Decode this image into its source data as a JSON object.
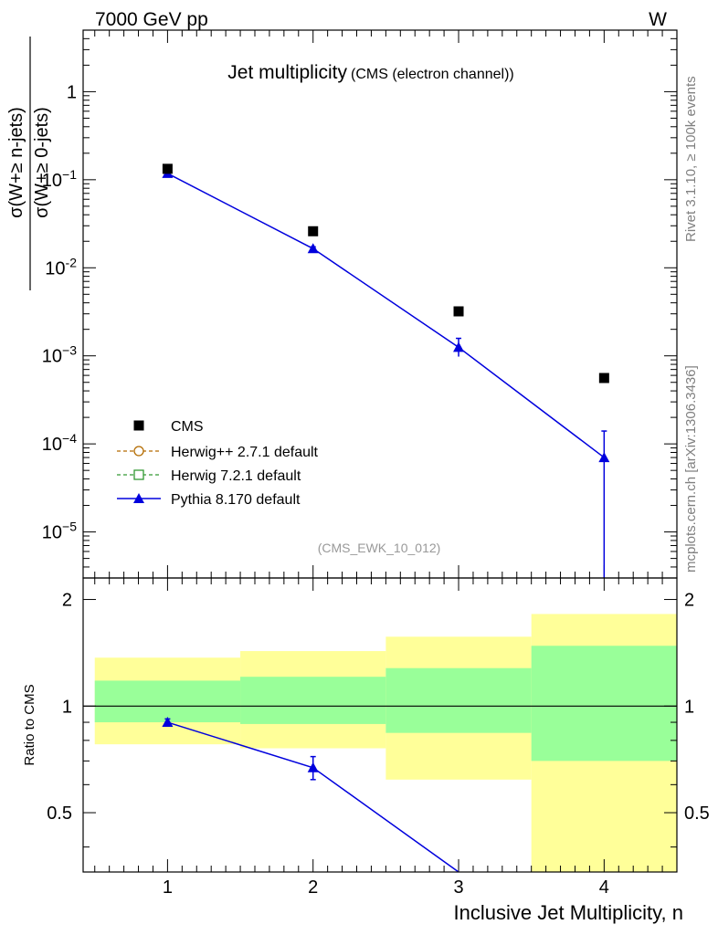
{
  "header": {
    "energy_label": "7000 GeV pp",
    "process_label": "W"
  },
  "side": {
    "rivet_label": "Rivet 3.1.10, ≥ 100k events",
    "source_label": "mcplots.cern.ch [arXiv:1306.3436]"
  },
  "chart_data": [
    {
      "type": "scatter",
      "title": "Jet multiplicity",
      "subtitle": "(CMS (electron channel))",
      "analysis_tag": "(CMS_EWK_10_012)",
      "ylabel_num": "σ(W+≥ n-jets)",
      "ylabel_den": "σ(W+≥ 0-jets)",
      "xlim": [
        0.42,
        4.5
      ],
      "ylim": [
        3e-06,
        5
      ],
      "yscale": "log",
      "y_tick_labels": [
        {
          "value": 1,
          "base": "1",
          "exp": ""
        },
        {
          "value": 0.1,
          "base": "10",
          "exp": "−1"
        },
        {
          "value": 0.01,
          "base": "10",
          "exp": "-2"
        },
        {
          "value": 0.001,
          "base": "10",
          "exp": "−3"
        },
        {
          "value": 0.0001,
          "base": "10",
          "exp": "−4"
        },
        {
          "value": 1e-05,
          "base": "10",
          "exp": "−5"
        }
      ],
      "legend_position": "bottom-left",
      "series": [
        {
          "name": "CMS",
          "marker": "square",
          "color": "#000000",
          "x": [
            1,
            2,
            3,
            4
          ],
          "y": [
            0.133,
            0.026,
            0.0032,
            0.00056
          ]
        },
        {
          "name": "Herwig++ 2.7.1 default",
          "marker": "open-circle",
          "line": "dashed",
          "color": "#b36b00",
          "x": [],
          "y": []
        },
        {
          "name": "Herwig 7.2.1 default",
          "marker": "open-square",
          "line": "dashed",
          "color": "#339933",
          "x": [],
          "y": []
        },
        {
          "name": "Pythia 8.170 default",
          "marker": "triangle",
          "line": "solid",
          "color": "#0000dd",
          "x": [
            1,
            2,
            3,
            4
          ],
          "y": [
            0.118,
            0.0165,
            0.00125,
            7e-05
          ],
          "yerr_low": [
            0.003,
            0.0008,
            0.00027,
            6.95e-05
          ],
          "yerr_high": [
            0.003,
            0.0008,
            0.00033,
            7e-05
          ]
        }
      ]
    },
    {
      "type": "scatter",
      "ylabel": "Ratio to CMS",
      "xlabel": "Inclusive Jet Multiplicity, n",
      "xlim": [
        0.42,
        4.5
      ],
      "ylim": [
        0.34,
        2.3
      ],
      "yscale": "log",
      "x_ticks": [
        1,
        2,
        3,
        4
      ],
      "y_ticks": [
        0.5,
        1,
        2
      ],
      "reference_line": 1,
      "bands": [
        {
          "x0": 0.5,
          "x1": 1.5,
          "inner": [
            0.9,
            1.18
          ],
          "outer": [
            0.78,
            1.37
          ]
        },
        {
          "x0": 1.5,
          "x1": 2.5,
          "inner": [
            0.89,
            1.21
          ],
          "outer": [
            0.76,
            1.43
          ]
        },
        {
          "x0": 2.5,
          "x1": 3.5,
          "inner": [
            0.84,
            1.28
          ],
          "outer": [
            0.62,
            1.57
          ]
        },
        {
          "x0": 3.5,
          "x1": 4.5,
          "inner": [
            0.7,
            1.48
          ],
          "outer": [
            0.34,
            1.82
          ]
        }
      ],
      "band_colors": {
        "inner": "#99ff99",
        "outer": "#ffff99"
      },
      "series": [
        {
          "name": "Pythia 8.170 default",
          "color": "#0000dd",
          "x": [
            1,
            2,
            3
          ],
          "y": [
            0.9,
            0.67,
            0.34
          ],
          "yerr_low": [
            0.02,
            0.05,
            0
          ],
          "yerr_high": [
            0.02,
            0.05,
            0
          ]
        }
      ]
    }
  ]
}
